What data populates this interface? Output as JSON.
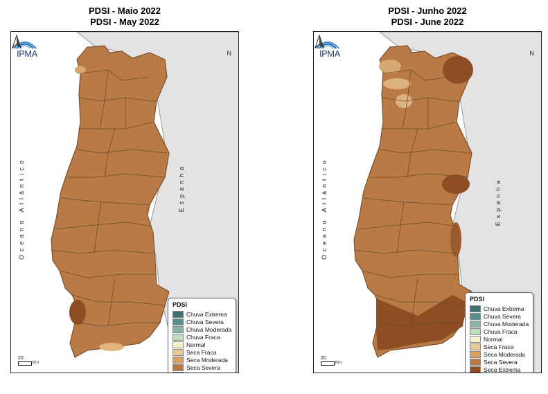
{
  "maps": [
    {
      "title_pt": "PDSI - Maio 2022",
      "title_en": "PDSI - May 2022",
      "logo_text": "IPMA",
      "north": "N",
      "ocean": "Oceano Atlântico",
      "spain": "Espanha",
      "scale_value": "20",
      "scale_unit": "Km",
      "legend_title": "PDSI"
    },
    {
      "title_pt": "PDSI - Junho 2022",
      "title_en": "PDSI - June 2022",
      "logo_text": "IPMA",
      "north": "N",
      "ocean": "Oceano Atlântico",
      "spain": "Espanha",
      "scale_value": "20",
      "scale_unit": "Km",
      "legend_title": "PDSI"
    }
  ],
  "legend_items": [
    {
      "label": "Chuva Extrema",
      "color": "#3e6f73"
    },
    {
      "label": "Chuva Severa",
      "color": "#5b8f8c"
    },
    {
      "label": "Chuva Moderada",
      "color": "#89b5a2"
    },
    {
      "label": "Chuva Fraca",
      "color": "#bcdcbd"
    },
    {
      "label": "Normal",
      "color": "#f5f4cf"
    },
    {
      "label": "Seca Fraca",
      "color": "#e8c896"
    },
    {
      "label": "Seca Moderada",
      "color": "#d59f66"
    },
    {
      "label": "Seca Severa",
      "color": "#b87a44"
    },
    {
      "label": "Seca Extrema",
      "color": "#8e4e23"
    }
  ]
}
